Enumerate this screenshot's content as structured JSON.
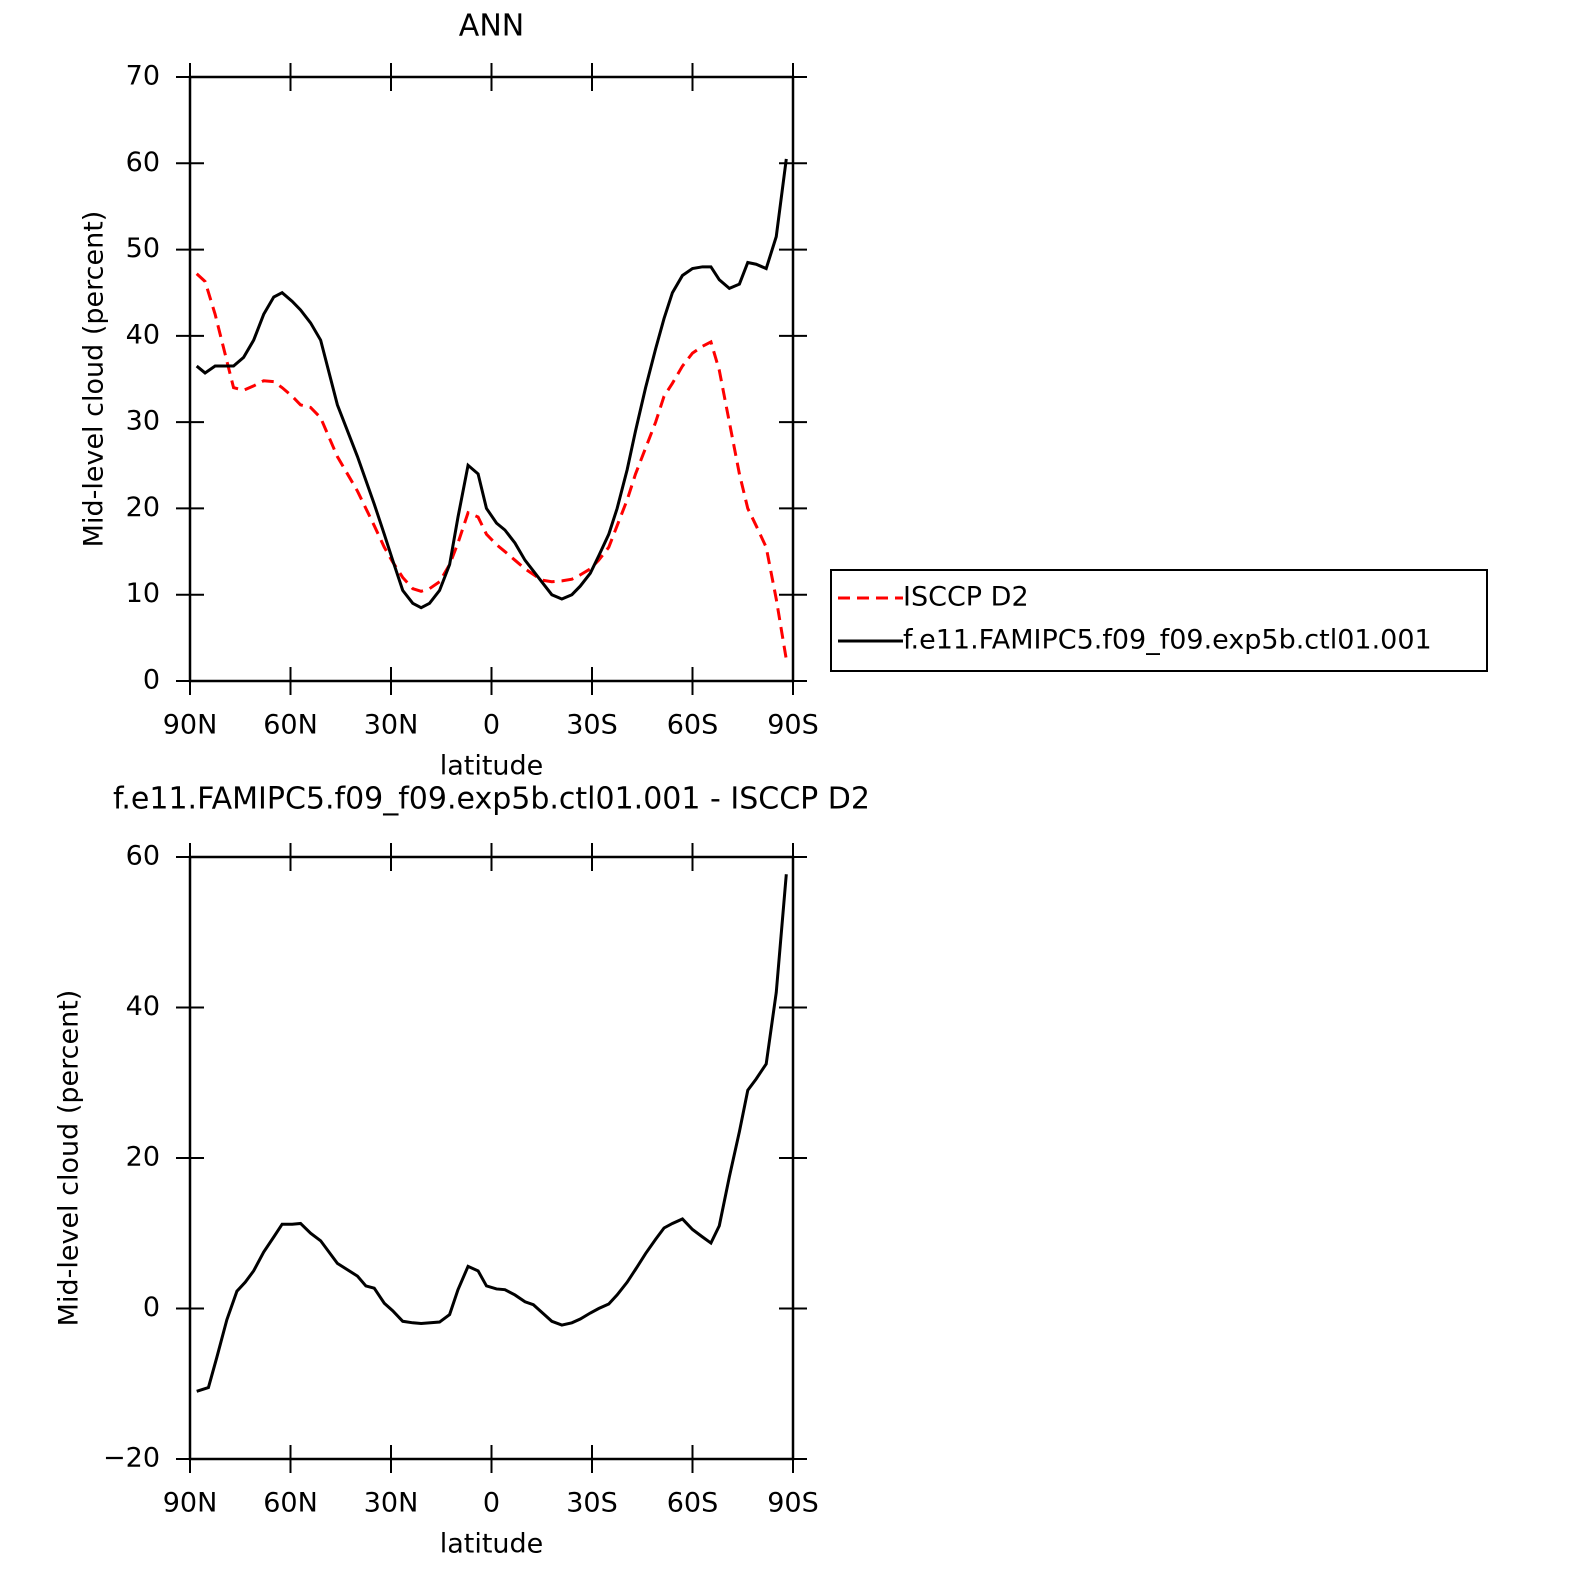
{
  "chart_data": [
    {
      "type": "line",
      "title": "ANN",
      "xlabel": "latitude",
      "ylabel": "Mid-level cloud (percent)",
      "x": [
        88,
        85.5,
        82.5,
        77,
        74,
        71,
        68,
        65,
        62.5,
        59.5,
        57,
        54,
        51,
        46,
        40,
        35,
        32,
        29.5,
        26.5,
        23.5,
        21,
        18.5,
        15.5,
        12.5,
        10,
        7,
        4,
        1.5,
        -1.5,
        -4,
        -7,
        -10,
        -15,
        -18,
        -21,
        -24,
        -26.5,
        -29.5,
        -32,
        -35,
        -37.5,
        -40.5,
        -43,
        -46,
        -49,
        -51.5,
        -54,
        -57,
        -60,
        -63,
        -65.5,
        -68,
        -71,
        -74,
        -76.5,
        -79,
        -82,
        -85,
        -88
      ],
      "series": [
        {
          "name": "ISCCP D2",
          "color": "#ff0000",
          "dash": true,
          "values": [
            47.2,
            46.3,
            42.5,
            34,
            33.7,
            34.2,
            34.8,
            34.7,
            34,
            33,
            32,
            31.7,
            30.5,
            26,
            22,
            18,
            15.5,
            13.8,
            12,
            10.7,
            10.4,
            10.7,
            11.5,
            13.5,
            16,
            19.5,
            19,
            17,
            15.8,
            15,
            14,
            13,
            11.7,
            11.5,
            11.6,
            11.8,
            12.3,
            13,
            14,
            15.5,
            18,
            21,
            24,
            27,
            30,
            33,
            34.5,
            36.5,
            38,
            38.8,
            39.3,
            36,
            30,
            24,
            20,
            18,
            15.5,
            9.5,
            2.5
          ]
        },
        {
          "name": "f.e11.FAMIPC5.f09_f09.exp5b.ctl01.001",
          "color": "#000000",
          "dash": false,
          "values": [
            36.5,
            35.7,
            36.5,
            36.5,
            37.5,
            39.5,
            42.5,
            44.5,
            45,
            44,
            43,
            41.5,
            39.5,
            32,
            26,
            20.5,
            17,
            14,
            10.5,
            9,
            8.5,
            9,
            10.5,
            13.5,
            19,
            25,
            24,
            20,
            18.3,
            17.5,
            16,
            14,
            11.5,
            10,
            9.5,
            10,
            11,
            12.5,
            14.5,
            17,
            20,
            24.5,
            29,
            34,
            38.5,
            42,
            45,
            47,
            47.8,
            48,
            48,
            46.5,
            45.5,
            46,
            48.5,
            48.3,
            47.8,
            51.5,
            60.5
          ]
        }
      ],
      "xlim": [
        90,
        -90
      ],
      "xticks": [
        {
          "value": 90,
          "label": "90N"
        },
        {
          "value": 60,
          "label": "60N"
        },
        {
          "value": 30,
          "label": "30N"
        },
        0,
        {
          "value": -30,
          "label": "30S"
        },
        {
          "value": -60,
          "label": "60S"
        },
        {
          "value": -90,
          "label": "90S"
        }
      ],
      "ylim": [
        0,
        70
      ],
      "yticks": [
        0,
        10,
        20,
        30,
        40,
        50,
        60,
        70
      ],
      "legend": "right"
    },
    {
      "type": "line",
      "title": "f.e11.FAMIPC5.f09_f09.exp5b.ctl01.001 - ISCCP D2",
      "xlabel": "latitude",
      "ylabel": "Mid-level cloud (percent)",
      "x": [
        88,
        84.5,
        82,
        79,
        76,
        73.5,
        71,
        68,
        65,
        62.5,
        59.5,
        57,
        54,
        51,
        46,
        40,
        37.5,
        35,
        32,
        29.5,
        26.5,
        23.5,
        21,
        15.5,
        12.5,
        10,
        7,
        4,
        1.5,
        -1.5,
        -4,
        -7,
        -10,
        -12.5,
        -15,
        -18,
        -21,
        -24,
        -26.5,
        -29.5,
        -32,
        -35,
        -37.5,
        -40.5,
        -43,
        -46,
        -49,
        -51.5,
        -54,
        -57,
        -60,
        -63,
        -65.5,
        -68,
        -71,
        -74,
        -76.5,
        -79,
        -82,
        -85,
        -88
      ],
      "series": [
        {
          "color": "#000000",
          "dash": false,
          "values": [
            -11,
            -10.5,
            -6.5,
            -1.5,
            2.3,
            3.5,
            5,
            7.5,
            9.5,
            11.2,
            11.2,
            11.3,
            10,
            9,
            6,
            4.3,
            3,
            2.7,
            0.7,
            -0.3,
            -1.7,
            -1.9,
            -2,
            -1.8,
            -0.8,
            2.5,
            5.6,
            5,
            3,
            2.6,
            2.5,
            1.8,
            0.9,
            0.5,
            -0.5,
            -1.7,
            -2.2,
            -1.9,
            -1.4,
            -0.6,
            0,
            0.6,
            1.8,
            3.5,
            5.2,
            7.3,
            9.2,
            10.7,
            11.3,
            11.9,
            10.5,
            9.5,
            8.7,
            11,
            17.5,
            23.5,
            29,
            30.5,
            32.5,
            42,
            57.7
          ]
        }
      ],
      "xlim": [
        90,
        -90
      ],
      "xticks": [
        {
          "value": 90,
          "label": "90N"
        },
        {
          "value": 60,
          "label": "60N"
        },
        {
          "value": 30,
          "label": "30N"
        },
        0,
        {
          "value": -30,
          "label": "30S"
        },
        {
          "value": -60,
          "label": "60S"
        },
        {
          "value": -90,
          "label": "90S"
        }
      ],
      "ylim": [
        -20,
        60
      ],
      "yticks": [
        {
          "value": -20,
          "label": "−20"
        },
        0,
        20,
        40,
        60
      ]
    }
  ]
}
